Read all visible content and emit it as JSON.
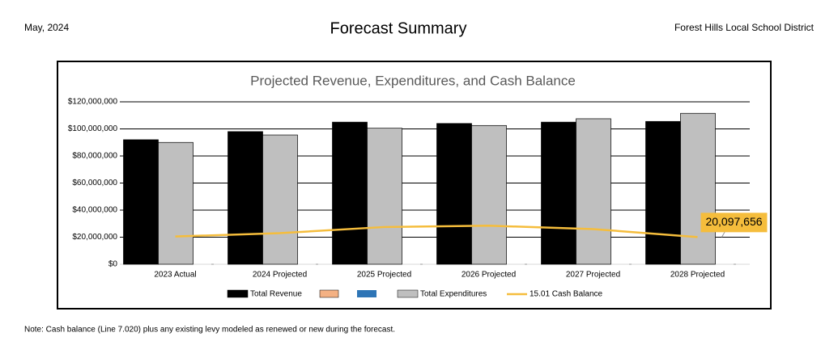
{
  "header": {
    "date": "May, 2024",
    "title": "Forecast Summary",
    "district": "Forest Hills Local School District"
  },
  "chart_data": {
    "type": "bar",
    "title": "Projected Revenue, Expenditures, and Cash Balance",
    "categories": [
      "2023 Actual",
      "2024 Projected",
      "2025 Projected",
      "2026 Projected",
      "2027 Projected",
      "2028 Projected"
    ],
    "series": [
      {
        "name": "Total Revenue",
        "color": "#000000",
        "values": [
          92000000,
          98000000,
          105000000,
          104000000,
          105000000,
          105500000
        ]
      },
      {
        "name": "Total Expenditures",
        "color": "#bfbfbf",
        "values": [
          90000000,
          95500000,
          100500000,
          102500000,
          107500000,
          111500000
        ]
      },
      {
        "name": "15.01 Cash Balance",
        "type": "line",
        "color": "#f5bd3c",
        "values": [
          20500000,
          23000000,
          27500000,
          28500000,
          26000000,
          20097656
        ],
        "value_labels": [
          null,
          null,
          null,
          null,
          null,
          "20,097,656"
        ]
      }
    ],
    "ylim": [
      0,
      120000000
    ],
    "yticks": [
      {
        "value": 0,
        "label": "$0"
      },
      {
        "value": 20000000,
        "label": "$20,000,000"
      },
      {
        "value": 40000000,
        "label": "$40,000,000"
      },
      {
        "value": 60000000,
        "label": "$60,000,000"
      },
      {
        "value": 80000000,
        "label": "$80,000,000"
      },
      {
        "value": 100000000,
        "label": "$100,000,000"
      },
      {
        "value": 120000000,
        "label": "$120,000,000"
      }
    ],
    "grid": true
  },
  "note": "Note:  Cash balance (Line 7.020) plus any existing levy modeled as renewed or new during the forecast."
}
